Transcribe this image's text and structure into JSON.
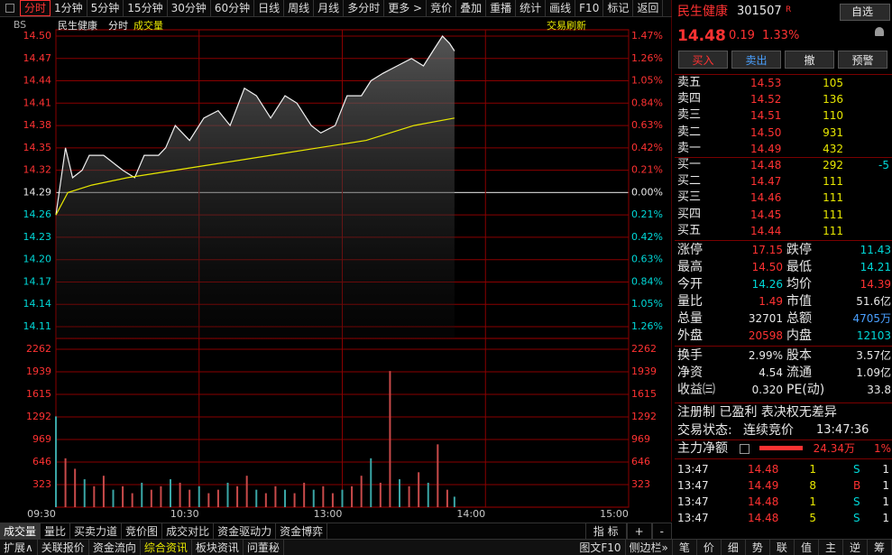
{
  "toolbar": {
    "tabs": [
      "分时",
      "1分钟",
      "5分钟",
      "15分钟",
      "30分钟",
      "60分钟",
      "日线",
      "周线",
      "月线",
      "多分时",
      "更多 >",
      "竞价",
      "叠加",
      "重播",
      "统计",
      "画线",
      "F10",
      "标记",
      "返回"
    ]
  },
  "chart": {
    "bs_icon": "BS",
    "title": "民生健康",
    "period": "分时",
    "indicator": "成交量",
    "refresh": "交易刷新",
    "xlim": [
      0,
      240
    ],
    "xticks": [
      {
        "value": 0,
        "label": "09:30"
      },
      {
        "value": 60,
        "label": "10:30"
      },
      {
        "value": 120,
        "label": "13:00"
      },
      {
        "value": 180,
        "label": "14:00"
      },
      {
        "value": 240,
        "label": "15:00"
      }
    ],
    "price": {
      "x": [
        0,
        4,
        7,
        11,
        14,
        20,
        24,
        28,
        33,
        37,
        43,
        46,
        50,
        56,
        62,
        68,
        73,
        79,
        84,
        90,
        96,
        101,
        107,
        111,
        117,
        122,
        128,
        132,
        137,
        143,
        149,
        154,
        158,
        162,
        165,
        167
      ],
      "values": [
        14.26,
        14.35,
        14.31,
        14.32,
        14.34,
        14.34,
        14.33,
        14.32,
        14.31,
        14.34,
        14.34,
        14.35,
        14.38,
        14.36,
        14.39,
        14.4,
        14.38,
        14.43,
        14.42,
        14.39,
        14.42,
        14.41,
        14.38,
        14.37,
        14.38,
        14.42,
        14.42,
        14.44,
        14.45,
        14.46,
        14.47,
        14.46,
        14.48,
        14.5,
        14.49,
        14.48
      ],
      "avg_x": [
        0,
        5,
        15,
        30,
        50,
        70,
        90,
        110,
        130,
        150,
        167
      ],
      "avg_values": [
        14.26,
        14.29,
        14.3,
        14.31,
        14.32,
        14.33,
        14.34,
        14.35,
        14.36,
        14.38,
        14.39
      ],
      "ylim": [
        14.11,
        14.5
      ],
      "yticks": [
        {
          "value": 14.5,
          "label": "14.50"
        },
        14.47,
        14.44,
        14.41,
        14.38,
        14.35,
        14.32,
        14.29,
        14.26,
        14.23,
        {
          "value": 14.2,
          "label": "14.20"
        },
        14.17,
        14.14,
        14.11
      ],
      "pct_labels": [
        "1.47%",
        "1.26%",
        "1.05%",
        "0.84%",
        "0.63%",
        "0.42%",
        "0.21%",
        "0.00%",
        "0.21%",
        "0.42%",
        "0.63%",
        "0.84%",
        "1.05%",
        "1.26%"
      ]
    },
    "volume": {
      "x": [
        0,
        4,
        8,
        12,
        16,
        20,
        24,
        28,
        32,
        36,
        40,
        44,
        48,
        52,
        56,
        60,
        64,
        68,
        72,
        76,
        80,
        84,
        88,
        92,
        96,
        100,
        104,
        108,
        112,
        116,
        120,
        124,
        128,
        132,
        136,
        140,
        144,
        148,
        152,
        156,
        160,
        164,
        167
      ],
      "values": [
        1300,
        700,
        550,
        400,
        300,
        450,
        250,
        300,
        200,
        350,
        250,
        300,
        400,
        350,
        250,
        300,
        200,
        250,
        350,
        300,
        450,
        250,
        200,
        300,
        250,
        200,
        350,
        250,
        300,
        200,
        250,
        300,
        450,
        700,
        350,
        1950,
        400,
        300,
        500,
        350,
        900,
        250,
        150
      ],
      "ylim": [
        0,
        2262
      ],
      "yticks": [
        2262,
        1939,
        1615,
        1292,
        969,
        646,
        323
      ]
    }
  },
  "quote": {
    "name": "民生健康",
    "code": "301507",
    "badge": "R",
    "watch": "自选",
    "price": "14.48",
    "change": "0.19",
    "change_pct": "1.33%",
    "buttons": [
      "买入",
      "卖出",
      "撤",
      "预警"
    ],
    "book": [
      [
        "卖五",
        "14.53",
        "105"
      ],
      [
        "卖四",
        "14.52",
        "136"
      ],
      [
        "卖三",
        "14.51",
        "110"
      ],
      [
        "卖二",
        "14.50",
        "931"
      ],
      [
        "卖一",
        "14.49",
        "432"
      ],
      [
        "买一",
        "14.48",
        "292",
        "-5"
      ],
      [
        "买二",
        "14.47",
        "111"
      ],
      [
        "买三",
        "14.46",
        "111"
      ],
      [
        "买四",
        "14.45",
        "111"
      ],
      [
        "买五",
        "14.44",
        "111"
      ]
    ],
    "stats": [
      [
        "涨停",
        "17.15",
        "跌停",
        "11.43"
      ],
      [
        "最高",
        "14.50",
        "最低",
        "14.21"
      ],
      [
        "今开",
        "14.26",
        "均价",
        "14.39"
      ],
      [
        "量比",
        "1.49",
        "市值",
        "51.6亿"
      ],
      [
        "总量",
        "32701",
        "总额",
        "4705万"
      ],
      [
        "外盘",
        "20598",
        "内盘",
        "12103"
      ],
      [
        "换手",
        "2.99%",
        "股本",
        "3.57亿"
      ],
      [
        "净资",
        "4.54",
        "流通",
        "1.09亿"
      ],
      [
        "收益㈢",
        "0.320",
        "PE(动)",
        "33.8"
      ]
    ],
    "tags": "注册制 已盈利 表决权无差异",
    "status_label": "交易状态:",
    "status": "连续竞价",
    "time": "13:47:36",
    "flow_label": "主力净额",
    "flow": "24.34万",
    "flow_pct": "1%",
    "trades": [
      [
        "13:47",
        "14.48",
        "1",
        "S",
        "1"
      ],
      [
        "13:47",
        "14.49",
        "8",
        "B",
        "1"
      ],
      [
        "13:47",
        "14.48",
        "1",
        "S",
        "1"
      ],
      [
        "13:47",
        "14.48",
        "5",
        "S",
        "1"
      ]
    ]
  },
  "bottom_tabs": [
    "成交量",
    "量比",
    "买卖力道",
    "竞价图",
    "成交对比",
    "资金驱动力",
    "资金博弈"
  ],
  "indicator_buttons": [
    "指 标",
    "+",
    "-"
  ],
  "footer_left": [
    "扩展∧",
    "关联报价",
    "资金流向",
    "综合资讯",
    "板块资讯",
    "问董秘"
  ],
  "footer_mid": [
    "图文F10",
    "侧边栏»"
  ],
  "footer_right": [
    "笔",
    "价",
    "细",
    "势",
    "联",
    "值",
    "主",
    "逆",
    "筹"
  ]
}
